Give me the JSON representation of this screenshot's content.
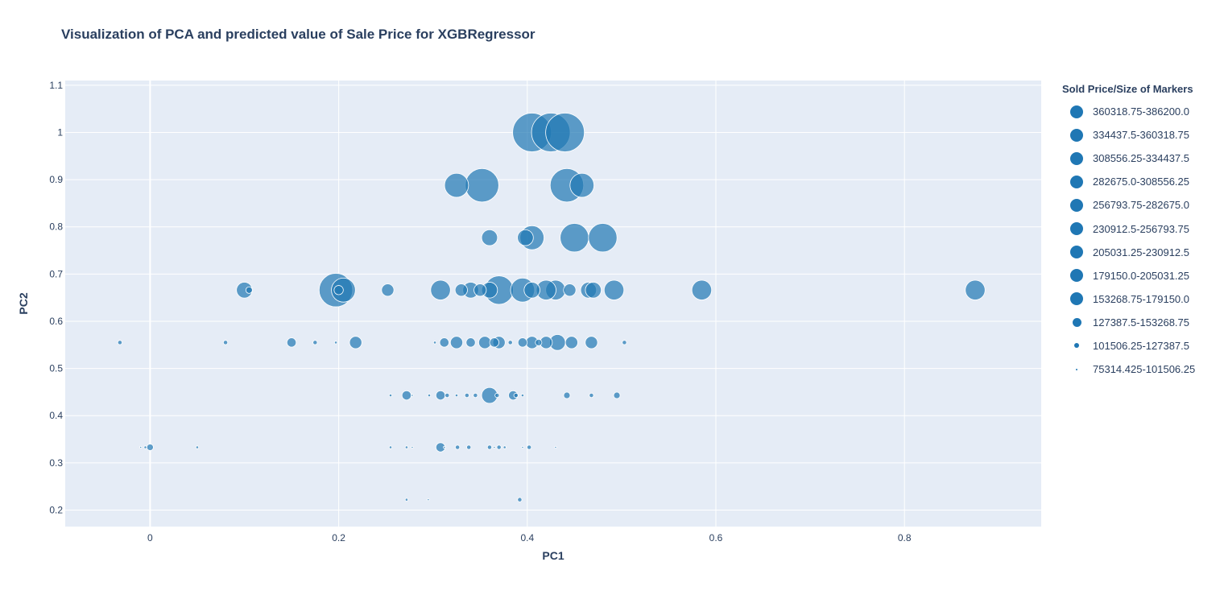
{
  "title": "Visualization of PCA and predicted value of Sale Price for XGBRegressor",
  "legend": {
    "title": "Sold Price/Size of Markers"
  },
  "colors": {
    "marker": "#1f77b4",
    "plot_bg": "#e5ecf6",
    "grid": "#ffffff",
    "text": "#2a3f5f"
  },
  "chart_data": {
    "type": "scatter",
    "title": "Visualization of PCA and predicted value of Sale Price for XGBRegressor",
    "xlabel": "PC1",
    "ylabel": "PC2",
    "xlim": [
      -0.09,
      0.945
    ],
    "ylim": [
      0.165,
      1.11
    ],
    "x_ticks": [
      0,
      0.2,
      0.4,
      0.6,
      0.8
    ],
    "x_tick_labels": [
      "0",
      "0.2",
      "0.4",
      "0.6",
      "0.8"
    ],
    "y_ticks": [
      0.2,
      0.3,
      0.4,
      0.5,
      0.6,
      0.7,
      0.8,
      0.9,
      1,
      1.1
    ],
    "y_tick_labels": [
      "0.2",
      "0.3",
      "0.4",
      "0.5",
      "0.6",
      "0.7",
      "0.8",
      "0.9",
      "1",
      "1.1"
    ],
    "grid": true,
    "legend_position": "right",
    "marker_color": "#1f77b4",
    "series": [
      {
        "name": "360318.75-386200.0",
        "points": [
          [
            0.405,
            1.0
          ],
          [
            0.425,
            1.0
          ],
          [
            0.44,
            1.0
          ]
        ]
      },
      {
        "name": "334437.5-360318.75",
        "points": [
          [
            0.352,
            0.888
          ],
          [
            0.442,
            0.888
          ],
          [
            0.197,
            0.666
          ]
        ]
      },
      {
        "name": "308556.25-334437.5",
        "points": [
          [
            0.45,
            0.777
          ],
          [
            0.48,
            0.777
          ],
          [
            0.37,
            0.666
          ]
        ]
      },
      {
        "name": "282675.0-308556.25",
        "points": [
          [
            0.325,
            0.888
          ],
          [
            0.458,
            0.888
          ],
          [
            0.405,
            0.777
          ],
          [
            0.205,
            0.666
          ],
          [
            0.395,
            0.666
          ]
        ]
      },
      {
        "name": "256793.75-282675.0",
        "points": [
          [
            0.875,
            0.666
          ],
          [
            0.43,
            0.666
          ],
          [
            0.308,
            0.666
          ],
          [
            0.492,
            0.666
          ],
          [
            0.585,
            0.666
          ],
          [
            0.42,
            0.666
          ]
        ]
      },
      {
        "name": "230912.5-256793.75",
        "points": [
          [
            0.36,
            0.777
          ],
          [
            0.398,
            0.777
          ],
          [
            0.1,
            0.666
          ],
          [
            0.34,
            0.666
          ],
          [
            0.36,
            0.666
          ],
          [
            0.405,
            0.666
          ],
          [
            0.465,
            0.666
          ],
          [
            0.47,
            0.666
          ],
          [
            0.36,
            0.443
          ],
          [
            0.432,
            0.555
          ]
        ]
      },
      {
        "name": "205031.25-230912.5",
        "points": [
          [
            0.252,
            0.666
          ],
          [
            0.33,
            0.666
          ],
          [
            0.35,
            0.666
          ],
          [
            0.445,
            0.666
          ],
          [
            0.218,
            0.555
          ],
          [
            0.325,
            0.555
          ],
          [
            0.37,
            0.555
          ],
          [
            0.447,
            0.555
          ],
          [
            0.468,
            0.555
          ],
          [
            0.42,
            0.555
          ],
          [
            0.405,
            0.555
          ],
          [
            0.355,
            0.555
          ]
        ]
      },
      {
        "name": "179150.0-205031.25",
        "points": [
          [
            0.2,
            0.666
          ],
          [
            0.312,
            0.555
          ],
          [
            0.34,
            0.555
          ],
          [
            0.395,
            0.555
          ],
          [
            0.365,
            0.555
          ],
          [
            0.15,
            0.555
          ],
          [
            0.308,
            0.443
          ],
          [
            0.385,
            0.443
          ],
          [
            0.272,
            0.443
          ],
          [
            0.308,
            0.333
          ]
        ]
      },
      {
        "name": "153268.75-179150.0",
        "points": [
          [
            0.105,
            0.666
          ],
          [
            0.442,
            0.443
          ],
          [
            0.495,
            0.443
          ],
          [
            0.412,
            0.555
          ],
          [
            0.0,
            0.333
          ]
        ]
      },
      {
        "name": "127387.5-153268.75",
        "points": [
          [
            -0.032,
            0.555
          ],
          [
            0.08,
            0.555
          ],
          [
            0.175,
            0.555
          ],
          [
            0.382,
            0.555
          ],
          [
            0.503,
            0.555
          ],
          [
            0.315,
            0.443
          ],
          [
            0.336,
            0.443
          ],
          [
            0.345,
            0.443
          ],
          [
            0.368,
            0.443
          ],
          [
            0.468,
            0.443
          ],
          [
            0.388,
            0.443
          ],
          [
            0.36,
            0.333
          ],
          [
            0.37,
            0.333
          ],
          [
            0.392,
            0.222
          ],
          [
            0.402,
            0.333
          ],
          [
            0.338,
            0.333
          ],
          [
            0.326,
            0.333
          ]
        ]
      },
      {
        "name": "101506.25-127387.5",
        "points": [
          [
            0.197,
            0.555
          ],
          [
            0.302,
            0.555
          ],
          [
            0.255,
            0.443
          ],
          [
            0.296,
            0.443
          ],
          [
            0.325,
            0.443
          ],
          [
            0.395,
            0.443
          ],
          [
            0.255,
            0.333
          ],
          [
            0.272,
            0.333
          ],
          [
            0.376,
            0.333
          ],
          [
            0.05,
            0.333
          ],
          [
            -0.005,
            0.333
          ],
          [
            0.272,
            0.222
          ]
        ]
      },
      {
        "name": "75314.425-101506.25",
        "points": [
          [
            0.43,
            0.333
          ],
          [
            0.365,
            0.333
          ],
          [
            0.278,
            0.333
          ],
          [
            0.395,
            0.333
          ],
          [
            0.295,
            0.222
          ],
          [
            0.312,
            0.333
          ],
          [
            -0.01,
            0.333
          ],
          [
            0.278,
            0.443
          ]
        ]
      }
    ]
  }
}
